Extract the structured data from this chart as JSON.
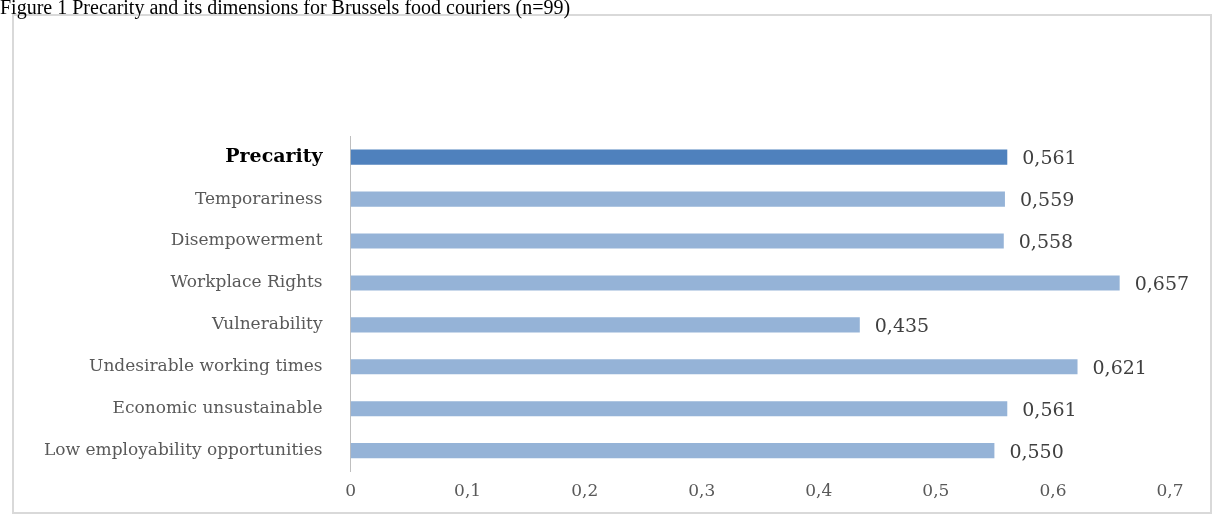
{
  "chart_data": {
    "type": "bar",
    "orientation": "horizontal",
    "title": "Figure 1 Precarity and its dimensions for Brussels food couriers (n=99)",
    "categories": [
      "Precarity",
      "Temporariness",
      "Disempowerment",
      "Workplace Rights",
      "Vulnerability",
      "Undesirable working times",
      "Economic unsustainable",
      "Low employability opportunities"
    ],
    "values": [
      0.561,
      0.559,
      0.558,
      0.657,
      0.435,
      0.621,
      0.561,
      0.55
    ],
    "colors": [
      "#4f81bd",
      "#95b3d7",
      "#95b3d7",
      "#95b3d7",
      "#95b3d7",
      "#95b3d7",
      "#95b3d7",
      "#95b3d7"
    ],
    "value_labels": [
      "0,561",
      "0,559",
      "0,558",
      "0,657",
      "0,435",
      "0,621",
      "0,561",
      "0,550"
    ],
    "xlim": [
      0,
      0.7
    ],
    "xticks": [
      0,
      {
        "value": 0.1,
        "label": "0,1"
      },
      {
        "value": 0.2,
        "label": "0,2"
      },
      {
        "value": 0.3,
        "label": "0,3"
      },
      {
        "value": 0.4,
        "label": "0,4"
      },
      {
        "value": 0.5,
        "label": "0,5"
      },
      {
        "value": 0.6,
        "label": "0,6"
      },
      {
        "value": 0.7,
        "label": "0,7"
      }
    ],
    "grid": false,
    "legend": false
  }
}
